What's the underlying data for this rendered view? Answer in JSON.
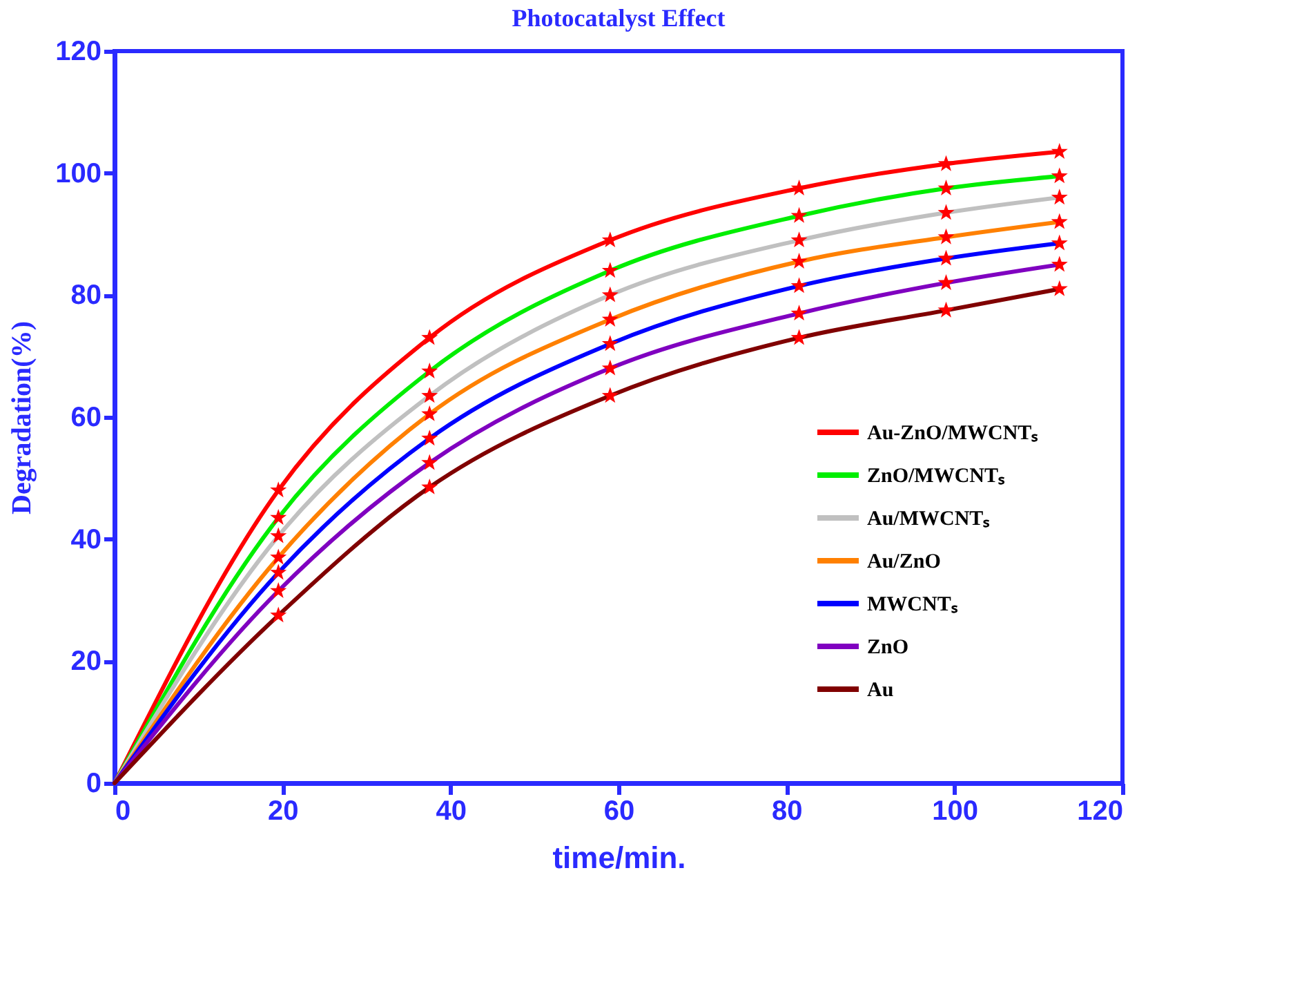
{
  "chart_data": {
    "type": "line",
    "title": "Photocatalyst Effect",
    "xlabel": "time/min.",
    "ylabel": "Degradation(%)",
    "xlim": [
      0,
      120
    ],
    "xticks": [
      0,
      20,
      40,
      60,
      80,
      100,
      120
    ],
    "ylim": [
      0,
      120
    ],
    "yticks": [
      0,
      20,
      40,
      60,
      80,
      100,
      120
    ],
    "grid": false,
    "legend": "bottom right",
    "line_style": "solid",
    "x": [
      0,
      19.5,
      37.5,
      59,
      81.5,
      99,
      112.5
    ],
    "series": [
      {
        "name": "Au-ZnO/MWCNTₛ",
        "color": "#ff0000",
        "values": [
          0,
          48,
          73,
          89,
          97.5,
          101.5,
          103.5
        ]
      },
      {
        "name": "ZnO/MWCNTₛ",
        "color": "#00ee00",
        "values": [
          0,
          43.5,
          67.5,
          84,
          93,
          97.5,
          99.5
        ]
      },
      {
        "name": "Au/MWCNTₛ",
        "color": "#c0c0c0",
        "values": [
          0,
          40.5,
          63.5,
          80,
          89,
          93.5,
          96
        ]
      },
      {
        "name": "Au/ZnO",
        "color": "#ff8000",
        "values": [
          0,
          37,
          60.5,
          76,
          85.5,
          89.5,
          92
        ]
      },
      {
        "name": "MWCNTₛ",
        "color": "#0000ff",
        "values": [
          0,
          34.5,
          56.5,
          72,
          81.5,
          86,
          88.5
        ]
      },
      {
        "name": "ZnO",
        "color": "#8000c0",
        "values": [
          0,
          31.5,
          52.5,
          68,
          77,
          82,
          85
        ]
      },
      {
        "name": "Au",
        "color": "#800000",
        "values": [
          0,
          27.5,
          48.5,
          63.5,
          73,
          77.5,
          81
        ]
      },
      {
        "type": "scatter",
        "marker": "star",
        "color": "#ff0000",
        "x": [
          19.5,
          37.5,
          59,
          81.5,
          99,
          112.5
        ],
        "values": [
          48,
          73,
          89,
          97.5,
          101.5,
          103.5
        ]
      },
      {
        "type": "scatter",
        "marker": "star",
        "color": "#ff0000",
        "x": [
          19.5,
          37.5,
          59,
          81.5,
          99,
          112.5
        ],
        "values": [
          43.5,
          67.5,
          84,
          93,
          97.5,
          99.5
        ]
      },
      {
        "type": "scatter",
        "marker": "star",
        "color": "#ff0000",
        "x": [
          19.5,
          37.5,
          59,
          81.5,
          99,
          112.5
        ],
        "values": [
          40.5,
          63.5,
          80,
          89,
          93.5,
          96
        ]
      },
      {
        "type": "scatter",
        "marker": "star",
        "color": "#ff0000",
        "x": [
          19.5,
          37.5,
          59,
          81.5,
          99,
          112.5
        ],
        "values": [
          37,
          60.5,
          76,
          85.5,
          89.5,
          92
        ]
      },
      {
        "type": "scatter",
        "marker": "star",
        "color": "#ff0000",
        "x": [
          19.5,
          37.5,
          59,
          81.5,
          99,
          112.5
        ],
        "values": [
          34.5,
          56.5,
          72,
          81.5,
          86,
          88.5
        ]
      },
      {
        "type": "scatter",
        "marker": "star",
        "color": "#ff0000",
        "x": [
          19.5,
          37.5,
          59,
          81.5,
          99,
          112.5
        ],
        "values": [
          31.5,
          52.5,
          68,
          77,
          82,
          85
        ]
      },
      {
        "type": "scatter",
        "marker": "star",
        "color": "#ff0000",
        "x": [
          19.5,
          37.5,
          59,
          81.5,
          99,
          112.5
        ],
        "values": [
          27.5,
          48.5,
          63.5,
          73,
          77.5,
          81
        ]
      }
    ]
  }
}
